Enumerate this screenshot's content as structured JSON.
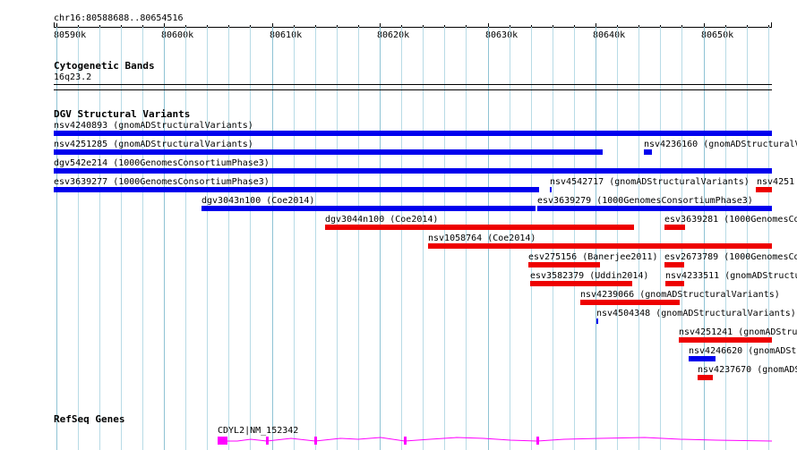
{
  "colors": {
    "variant_blue": "#0000ee",
    "variant_red": "#ee0000",
    "gene_magenta": "#ff00ff",
    "grid": "#b8dbe6"
  },
  "ruler": {
    "location": "chr16:80588688..80654516",
    "labels": [
      "80590k",
      "80600k",
      "80610k",
      "80620k",
      "80630k",
      "80640k",
      "80650k"
    ]
  },
  "cytoband": {
    "title": "Cytogenetic Bands",
    "band": "16q23.2"
  },
  "dgv": {
    "title": "DGV Structural Variants",
    "features": [
      {
        "label": "nsv4240893 (gnomADStructuralVariants)",
        "color": "blue"
      },
      {
        "label": "nsv4251285 (gnomADStructuralVariants)",
        "color": "blue"
      },
      {
        "label": "nsv4236160 (gnomADStructuralV",
        "color": "blue"
      },
      {
        "label": "dgv542e214 (1000GenomesConsortiumPhase3)",
        "color": "blue"
      },
      {
        "label": "esv3639277 (1000GenomesConsortiumPhase3)",
        "color": "blue"
      },
      {
        "label": "nsv4542717 (gnomADStructuralVariants)",
        "color": "blue"
      },
      {
        "label": "nsv4251",
        "color": "red"
      },
      {
        "label": "dgv3043n100 (Coe2014)",
        "color": "blue"
      },
      {
        "label": "esv3639279 (1000GenomesConsortiumPhase3)",
        "color": "blue"
      },
      {
        "label": "dgv3044n100 (Coe2014)",
        "color": "red"
      },
      {
        "label": "esv3639281 (1000GenomesCo",
        "color": "red"
      },
      {
        "label": "nsv1058764 (Coe2014)",
        "color": "red"
      },
      {
        "label": "esv275156 (Banerjee2011)",
        "color": "red"
      },
      {
        "label": "esv2673789 (1000GenomesCo",
        "color": "red"
      },
      {
        "label": "esv3582379 (Uddin2014)",
        "color": "red"
      },
      {
        "label": "nsv4233511 (gnomADStructu",
        "color": "red"
      },
      {
        "label": "nsv4239066 (gnomADStructuralVariants)",
        "color": "red"
      },
      {
        "label": "nsv4504348 (gnomADStructuralVariants)",
        "color": "blue"
      },
      {
        "label": "nsv4251241 (gnomADStructu",
        "color": "red"
      },
      {
        "label": "nsv4246620 (gnomADStr",
        "color": "blue"
      },
      {
        "label": "nsv4237670 (gnomADStr",
        "color": "red"
      }
    ]
  },
  "refseq": {
    "title": "RefSeq Genes",
    "gene": "CDYL2|NM_152342"
  }
}
